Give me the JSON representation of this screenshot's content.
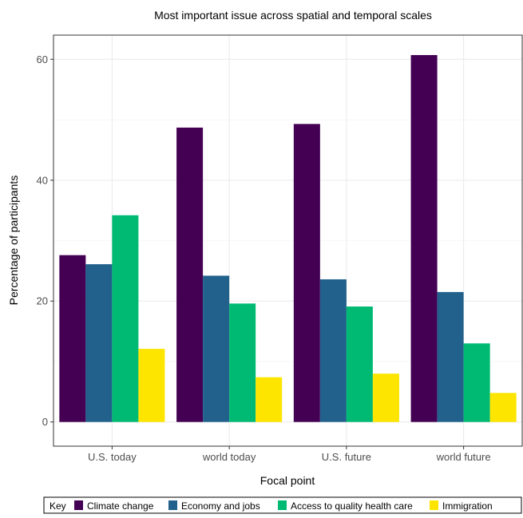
{
  "chart_data": {
    "type": "bar",
    "title": "Most important issue across spatial and temporal scales",
    "xlabel": "Focal point",
    "ylabel": "Percentage of participants",
    "categories": [
      "U.S. today",
      "world today",
      "U.S. future",
      "world future"
    ],
    "ylim": [
      -4,
      64
    ],
    "yticks": [
      0,
      20,
      40,
      60
    ],
    "grid": true,
    "legend_title": "Key",
    "legend_position": "bottom",
    "series": [
      {
        "name": "Climate change",
        "color": "#440154",
        "values": [
          27.6,
          48.7,
          49.3,
          60.7
        ]
      },
      {
        "name": "Economy and jobs",
        "color": "#21618C",
        "values": [
          26.1,
          24.2,
          23.6,
          21.5
        ]
      },
      {
        "name": "Access to quality health care",
        "color": "#00BA73",
        "values": [
          34.2,
          19.6,
          19.1,
          13.0
        ]
      },
      {
        "name": "Immigration",
        "color": "#FDE500",
        "values": [
          12.1,
          7.4,
          8.0,
          4.8
        ]
      }
    ]
  }
}
